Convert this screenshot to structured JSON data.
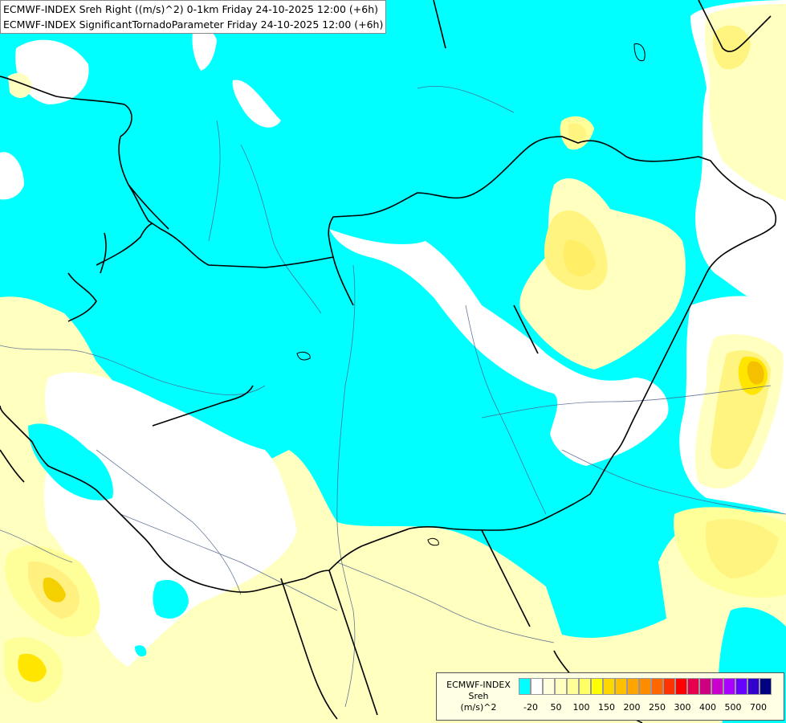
{
  "header": {
    "line1": "ECMWF-INDEX Sreh Right ((m/s)^2) 0-1km Friday 24-10-2025 12:00 (+6h)",
    "line2": "ECMWF-INDEX SignificantTornadoParameter Friday 24-10-2025 12:00 (+6h)"
  },
  "legend": {
    "title1": "ECMWF-INDEX",
    "title2": "Sreh",
    "unit": "(m/s)^2",
    "colors": [
      "#00FFFF",
      "#FFFFFF",
      "#FFFFE0",
      "#FFFFC0",
      "#FFFF99",
      "#FFFF66",
      "#FFFF00",
      "#FFD700",
      "#FFC000",
      "#FFA500",
      "#FF8C00",
      "#FF6600",
      "#FF3300",
      "#FF0000",
      "#E6004C",
      "#CC0080",
      "#CC00CC",
      "#AA00FF",
      "#6600FF",
      "#3300CC",
      "#000080"
    ],
    "ticks": [
      "-20",
      "50",
      "100",
      "150",
      "200",
      "250",
      "300",
      "400",
      "500",
      "700"
    ]
  },
  "map_colors": {
    "cyan": "#00FFFF",
    "white": "#FFFFFF",
    "pale_yellow": "#FFFFC0",
    "yellow": "#FFF480",
    "strong_yellow": "#FFE500",
    "orange_core": "#F4C000",
    "border": "#000000",
    "river": "#4A5F8A"
  }
}
